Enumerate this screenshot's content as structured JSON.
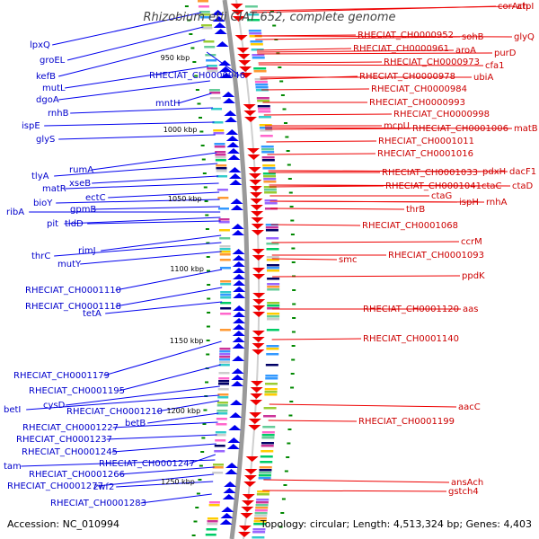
{
  "title": "Rhizobium etli CIAT 652, complete genome",
  "footer": {
    "accession": "Accession: NC_010994",
    "stats": "Topology: circular; Length: 4,513,324 bp; Genes: 4,403"
  },
  "kbp_ticks": [
    "950 kbp",
    "1000 kbp",
    "1050 kbp",
    "1100 kbp",
    "1150 kbp",
    "1200 kbp",
    "1250 kbp"
  ],
  "left_labels": [
    "lpxQ",
    "groEL",
    "kefB",
    "RHECIAT_CH0000946",
    "mutL",
    "dgoA",
    "mntH",
    "rnhB",
    "ispE",
    "glyS",
    "rumA",
    "tlyA",
    "xseB",
    "matR",
    "ectC",
    "bioY",
    "gpmB",
    "ribA",
    "tldD",
    "pit",
    "rimJ",
    "thrC",
    "mutY",
    "RHECIAT_CH0001110",
    "RHECIAT_CH0001118",
    "tetA",
    "RHECIAT_CH0001179",
    "RHECIAT_CH0001195",
    "cysD",
    "betI",
    "RHECIAT_CH0001210",
    "betB",
    "RHECIAT_CH0001227",
    "RHECIAT_CH0001237",
    "RHECIAT_CH0001245",
    "RHECIAT_CH0001247",
    "tam",
    "RHECIAT_CH0001266",
    "RHECIAT_CH0001277",
    "zwf2",
    "RHECIAT_CH0001283"
  ],
  "right_labels": [
    "corAch",
    "atpI",
    "RHECIAT_CH0000952",
    "sohB",
    "glyQ",
    "RHECIAT_CH0000961",
    "aroA",
    "purD",
    "RHECIAT_CH0000973",
    "cfa1",
    "RHECIAT_CH0000978",
    "ubiA",
    "RHECIAT_CH0000984",
    "RHECIAT_CH0000993",
    "RHECIAT_CH0000998",
    "mcpU",
    "RHECIAT_CH0001006",
    "matB",
    "RHECIAT_CH0001011",
    "RHECIAT_CH0001016",
    "RHECIAT_CH0001033",
    "pdxH",
    "dacF1",
    "RHECIAT_CH0001041",
    "ctaC",
    "ctaD",
    "ctaG",
    "ispH",
    "rnhA",
    "thrB",
    "RHECIAT_CH0001068",
    "ccrM",
    "smc",
    "RHECIAT_CH0001093",
    "ppdK",
    "RHECIAT_CH0001120",
    "aas",
    "RHECIAT_CH0001140",
    "aacC",
    "RHECIAT_CH0001199",
    "ansAch",
    "gstch4"
  ],
  "colors": {
    "forward": "#0000ee",
    "reverse": "#ee0000",
    "backbone": "#999999",
    "tick": "#008800"
  }
}
